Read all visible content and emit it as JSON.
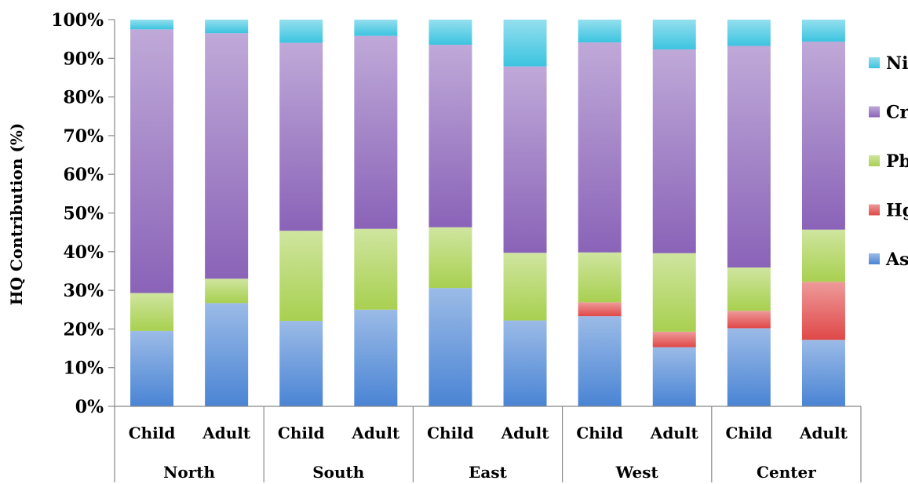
{
  "chart_data": {
    "type": "bar",
    "stacked": true,
    "ylabel": "HQ Contribution (%)",
    "ylim": [
      0,
      100
    ],
    "yticks": [
      "0%",
      "10%",
      "20%",
      "30%",
      "40%",
      "50%",
      "60%",
      "70%",
      "80%",
      "90%",
      "100%"
    ],
    "groups": [
      "North",
      "South",
      "East",
      "West",
      "Center"
    ],
    "subcategories": [
      "Child",
      "Adult",
      "Child",
      "Adult",
      "Child",
      "Adult",
      "Child",
      "Adult",
      "Child",
      "Adult"
    ],
    "series": [
      {
        "name": "As",
        "color": "#4a84d4",
        "values": [
          19.5,
          26.7,
          22.1,
          25.0,
          30.6,
          22.2,
          23.3,
          15.3,
          20.2,
          17.2
        ]
      },
      {
        "name": "Hg",
        "color": "#e04848",
        "values": [
          0.0,
          0.0,
          0.0,
          0.0,
          0.0,
          0.0,
          3.6,
          4.0,
          4.5,
          15.0
        ]
      },
      {
        "name": "Pb",
        "color": "#a8d050",
        "values": [
          9.8,
          6.3,
          23.3,
          20.9,
          15.7,
          17.5,
          12.9,
          20.3,
          11.2,
          13.5
        ]
      },
      {
        "name": "Cr",
        "color": "#8a63b8",
        "values": [
          68.2,
          63.5,
          48.6,
          49.9,
          47.2,
          48.2,
          54.3,
          52.7,
          57.3,
          48.6
        ]
      },
      {
        "name": "Ni",
        "color": "#3cc4e0",
        "values": [
          2.5,
          3.5,
          6.0,
          4.2,
          6.5,
          12.1,
          5.9,
          7.7,
          6.8,
          5.7
        ]
      }
    ],
    "legend": {
      "position": "right",
      "order": [
        "Ni",
        "Cr",
        "Pb",
        "Hg",
        "As"
      ]
    },
    "grid": false
  }
}
